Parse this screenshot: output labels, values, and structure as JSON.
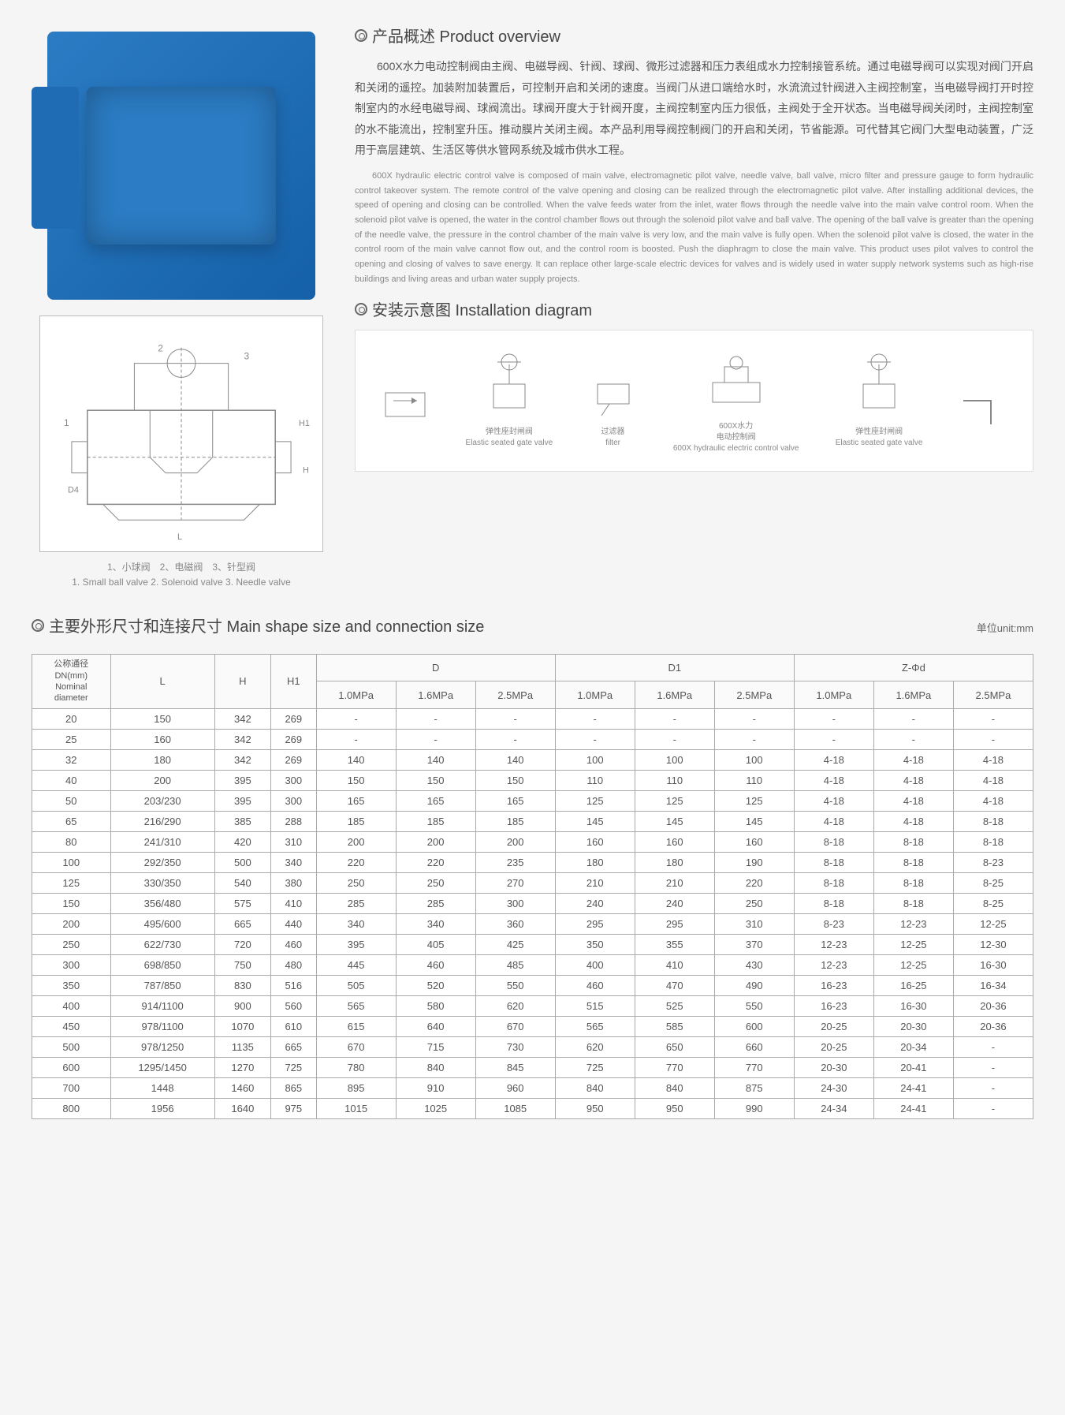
{
  "overview": {
    "title": "产品概述 Product overview",
    "para_cn": "600X水力电动控制阀由主阀、电磁导阀、针阀、球阀、微形过滤器和压力表组成水力控制接管系统。通过电磁导阀可以实现对阀门开启和关闭的遥控。加装附加装置后，可控制开启和关闭的速度。当阀门从进口端给水时，水流流过针阀进入主阀控制室，当电磁导阀打开时控制室内的水经电磁导阀、球阀流出。球阀开度大于针阀开度，主阀控制室内压力很低，主阀处于全开状态。当电磁导阀关闭时，主阀控制室的水不能流出，控制室升压。推动膜片关闭主阀。本产品利用导阀控制阀门的开启和关闭，节省能源。可代替其它阀门大型电动装置，广泛用于高层建筑、生活区等供水管网系统及城市供水工程。",
    "para_en": "600X hydraulic electric control valve is composed of main valve, electromagnetic pilot valve, needle valve, ball valve, micro filter and pressure gauge to form hydraulic control takeover system. The remote control of the valve opening and closing can be realized through the electromagnetic pilot valve. After installing additional devices, the speed of opening and closing can be controlled. When the valve feeds water from the inlet, water flows through the needle valve into the main valve control room. When the solenoid pilot valve is opened, the water in the control chamber flows out through the solenoid pilot valve and ball valve. The opening of the ball valve is greater than the opening of the needle valve, the pressure in the control chamber of the main valve is very low, and the main valve is fully open. When the solenoid pilot valve is closed, the water in the control room of the main valve cannot flow out, and the control room is boosted. Push the diaphragm to close the main valve. This product uses pilot valves to control the opening and closing of valves to save energy. It can replace other large-scale electric devices for valves and is widely used in water supply network systems such as high-rise buildings and living areas and urban water supply projects."
  },
  "diagram_caption": {
    "cn": "1、小球阀　2、电磁阀　3、针型阀",
    "en": "1. Small ball valve 2. Solenoid valve 3. Needle valve"
  },
  "install": {
    "title": "安装示意图 Installation diagram",
    "items": [
      {
        "cn": "弹性座封闸阀",
        "en": "Elastic seated gate valve"
      },
      {
        "cn": "过滤器",
        "en": "filter"
      },
      {
        "cn": "600X水力\n电动控制阀",
        "en": "600X hydraulic electric control valve"
      },
      {
        "cn": "弹性座封闸阀",
        "en": "Elastic seated gate valve"
      }
    ]
  },
  "table": {
    "title": "主要外形尺寸和连接尺寸 Main shape size and connection size",
    "unit": "单位unit:mm",
    "header": {
      "dn": "公称通径\nDN(mm)\nNominal\ndiameter",
      "L": "L",
      "H": "H",
      "H1": "H1",
      "D": "D",
      "D1": "D1",
      "Zd": "Z-Φd",
      "p1": "1.0MPa",
      "p2": "1.6MPa",
      "p3": "2.5MPa"
    },
    "rows": [
      [
        "20",
        "150",
        "342",
        "269",
        "-",
        "-",
        "-",
        "-",
        "-",
        "-",
        "-",
        "-",
        "-"
      ],
      [
        "25",
        "160",
        "342",
        "269",
        "-",
        "-",
        "-",
        "-",
        "-",
        "-",
        "-",
        "-",
        "-"
      ],
      [
        "32",
        "180",
        "342",
        "269",
        "140",
        "140",
        "140",
        "100",
        "100",
        "100",
        "4-18",
        "4-18",
        "4-18"
      ],
      [
        "40",
        "200",
        "395",
        "300",
        "150",
        "150",
        "150",
        "110",
        "110",
        "110",
        "4-18",
        "4-18",
        "4-18"
      ],
      [
        "50",
        "203/230",
        "395",
        "300",
        "165",
        "165",
        "165",
        "125",
        "125",
        "125",
        "4-18",
        "4-18",
        "4-18"
      ],
      [
        "65",
        "216/290",
        "385",
        "288",
        "185",
        "185",
        "185",
        "145",
        "145",
        "145",
        "4-18",
        "4-18",
        "8-18"
      ],
      [
        "80",
        "241/310",
        "420",
        "310",
        "200",
        "200",
        "200",
        "160",
        "160",
        "160",
        "8-18",
        "8-18",
        "8-18"
      ],
      [
        "100",
        "292/350",
        "500",
        "340",
        "220",
        "220",
        "235",
        "180",
        "180",
        "190",
        "8-18",
        "8-18",
        "8-23"
      ],
      [
        "125",
        "330/350",
        "540",
        "380",
        "250",
        "250",
        "270",
        "210",
        "210",
        "220",
        "8-18",
        "8-18",
        "8-25"
      ],
      [
        "150",
        "356/480",
        "575",
        "410",
        "285",
        "285",
        "300",
        "240",
        "240",
        "250",
        "8-18",
        "8-18",
        "8-25"
      ],
      [
        "200",
        "495/600",
        "665",
        "440",
        "340",
        "340",
        "360",
        "295",
        "295",
        "310",
        "8-23",
        "12-23",
        "12-25"
      ],
      [
        "250",
        "622/730",
        "720",
        "460",
        "395",
        "405",
        "425",
        "350",
        "355",
        "370",
        "12-23",
        "12-25",
        "12-30"
      ],
      [
        "300",
        "698/850",
        "750",
        "480",
        "445",
        "460",
        "485",
        "400",
        "410",
        "430",
        "12-23",
        "12-25",
        "16-30"
      ],
      [
        "350",
        "787/850",
        "830",
        "516",
        "505",
        "520",
        "550",
        "460",
        "470",
        "490",
        "16-23",
        "16-25",
        "16-34"
      ],
      [
        "400",
        "914/1100",
        "900",
        "560",
        "565",
        "580",
        "620",
        "515",
        "525",
        "550",
        "16-23",
        "16-30",
        "20-36"
      ],
      [
        "450",
        "978/1100",
        "1070",
        "610",
        "615",
        "640",
        "670",
        "565",
        "585",
        "600",
        "20-25",
        "20-30",
        "20-36"
      ],
      [
        "500",
        "978/1250",
        "1135",
        "665",
        "670",
        "715",
        "730",
        "620",
        "650",
        "660",
        "20-25",
        "20-34",
        "-"
      ],
      [
        "600",
        "1295/1450",
        "1270",
        "725",
        "780",
        "840",
        "845",
        "725",
        "770",
        "770",
        "20-30",
        "20-41",
        "-"
      ],
      [
        "700",
        "1448",
        "1460",
        "865",
        "895",
        "910",
        "960",
        "840",
        "840",
        "875",
        "24-30",
        "24-41",
        "-"
      ],
      [
        "800",
        "1956",
        "1640",
        "975",
        "1015",
        "1025",
        "1085",
        "950",
        "950",
        "990",
        "24-34",
        "24-41",
        "-"
      ]
    ],
    "colors": {
      "border": "#aaaaaa",
      "header_bg": "#fafafa",
      "text": "#555555"
    }
  }
}
